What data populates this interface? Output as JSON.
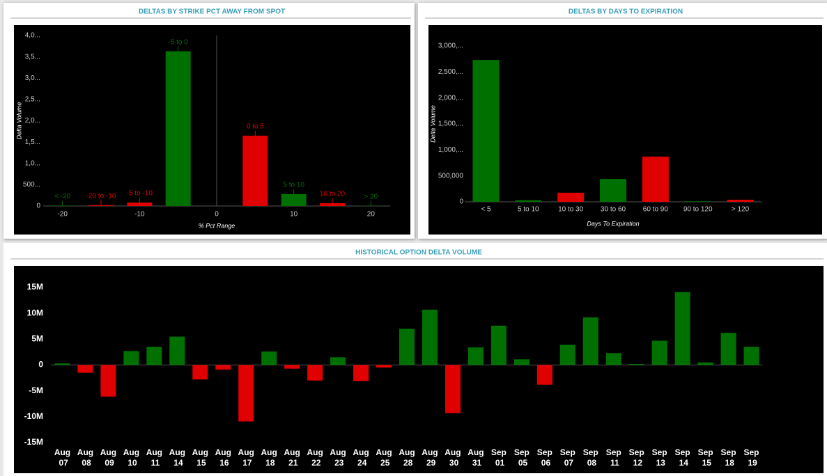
{
  "chart_data": [
    {
      "type": "bar",
      "title": "DELTAS BY STRIKE PCT AWAY FROM SPOT",
      "x": [
        -20,
        -15,
        -10,
        -5,
        5,
        10,
        15,
        20
      ],
      "labels": [
        "< -20",
        "-20 to -10",
        "-5 to -10",
        "-5 to 0",
        "0 to 5",
        "5 to 10",
        "10 to 20",
        "> 20"
      ],
      "values": [
        10000,
        20000,
        80000,
        3630000,
        1650000,
        280000,
        65000,
        5000
      ],
      "colors": [
        "#007000",
        "#e00000",
        "#e00000",
        "#007000",
        "#e00000",
        "#007000",
        "#e00000",
        "#007000"
      ],
      "xlim": [
        -22.5,
        22.5
      ],
      "xticks": [
        -20,
        -10,
        0,
        10,
        20
      ],
      "ylim": [
        0,
        4000000
      ],
      "yticks": [
        0,
        {
          "value": 500000,
          "label": "500..."
        },
        {
          "value": 1000000,
          "label": "1,0..."
        },
        {
          "value": 1500000,
          "label": "1,5..."
        },
        {
          "value": 2000000,
          "label": "2,0..."
        },
        {
          "value": 2500000,
          "label": "2,5..."
        },
        {
          "value": 3000000,
          "label": "3,0..."
        },
        {
          "value": 3500000,
          "label": "3,5..."
        },
        {
          "value": 4000000,
          "label": "4,0..."
        }
      ],
      "x_label": "% Pct Range",
      "y_label": "Delta Volume",
      "grid": false
    },
    {
      "type": "bar",
      "title": "DELTAS BY DAYS TO EXPIRATION",
      "categories": [
        "< 5",
        "5 to 10",
        "10 to 30",
        "30 to 60",
        "60 to 90",
        "90 to 120",
        "> 120"
      ],
      "values": [
        2730000,
        30000,
        175000,
        440000,
        870000,
        10000,
        40000
      ],
      "colors": [
        "#007000",
        "#007000",
        "#e00000",
        "#007000",
        "#e00000",
        "#007000",
        "#e00000"
      ],
      "ylim": [
        0,
        3000000
      ],
      "yticks": [
        0,
        {
          "value": 500000,
          "label": "500,000"
        },
        {
          "value": 1000000,
          "label": "1,000,..."
        },
        {
          "value": 1500000,
          "label": "1,500,..."
        },
        {
          "value": 2000000,
          "label": "2,000,..."
        },
        {
          "value": 2500000,
          "label": "2,500,..."
        },
        {
          "value": 3000000,
          "label": "3,000,..."
        }
      ],
      "x_label": "Days To Expiration",
      "y_label": "Delta Volume",
      "grid": false
    },
    {
      "type": "bar",
      "title": "HISTORICAL OPTION DELTA VOLUME",
      "categories": [
        "Aug 07",
        "Aug 08",
        "Aug 09",
        "Aug 10",
        "Aug 11",
        "Aug 14",
        "Aug 15",
        "Aug 16",
        "Aug 17",
        "Aug 18",
        "Aug 21",
        "Aug 22",
        "Aug 23",
        "Aug 24",
        "Aug 25",
        "Aug 28",
        "Aug 29",
        "Aug 30",
        "Aug 31",
        "Sep 01",
        "Sep 05",
        "Sep 06",
        "Sep 07",
        "Sep 08",
        "Sep 11",
        "Sep 12",
        "Sep 13",
        "Sep 14",
        "Sep 15",
        "Sep 18",
        "Sep 19"
      ],
      "values": [
        300000,
        -1500000,
        -6100000,
        2700000,
        3500000,
        5500000,
        -2800000,
        -900000,
        -10900000,
        2600000,
        -700000,
        -3000000,
        1500000,
        -3100000,
        -500000,
        7000000,
        10700000,
        -9300000,
        3400000,
        7600000,
        1100000,
        -3800000,
        3900000,
        9200000,
        2300000,
        200000,
        4700000,
        14100000,
        500000,
        6200000,
        3500000
      ],
      "positive_color": "#007000",
      "negative_color": "#e00000",
      "ylim": [
        -15000000,
        15000000
      ],
      "yticks": [
        {
          "value": -15000000,
          "label": "-15M"
        },
        {
          "value": -10000000,
          "label": "-10M"
        },
        {
          "value": -5000000,
          "label": "-5M"
        },
        0,
        {
          "value": 5000000,
          "label": "5M"
        },
        {
          "value": 10000000,
          "label": "10M"
        },
        {
          "value": 15000000,
          "label": "15M"
        }
      ],
      "grid": false
    }
  ]
}
